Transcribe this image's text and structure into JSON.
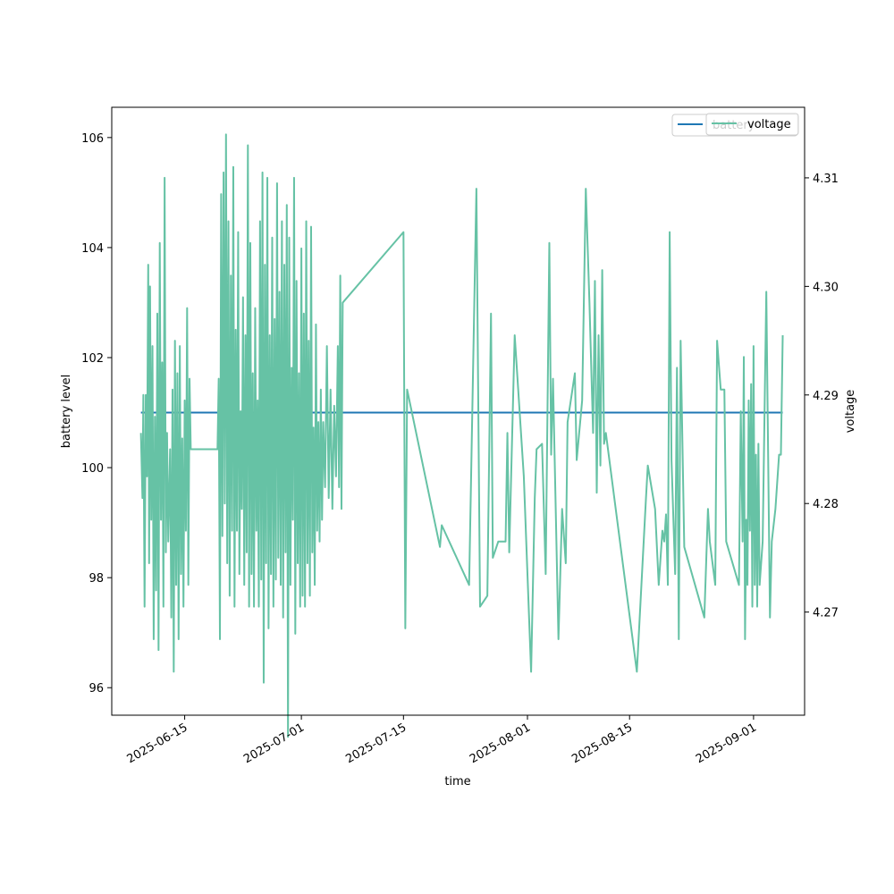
{
  "chart_data": {
    "type": "line",
    "xlabel": "time",
    "ylabel_left": "battery level",
    "ylabel_right": "voltage",
    "x_range": [
      "2025-06-05",
      "2025-09-08"
    ],
    "ylim_left": [
      95.5,
      106.55
    ],
    "ylim_right": [
      4.2605,
      4.3165
    ],
    "x_ticks": [
      "2025-06-15",
      "2025-07-01",
      "2025-07-15",
      "2025-08-01",
      "2025-08-15",
      "2025-09-01"
    ],
    "y_ticks_left": [
      96,
      98,
      100,
      102,
      104,
      106
    ],
    "y_ticks_right": [
      4.27,
      4.28,
      4.29,
      4.3,
      4.31
    ],
    "grid": false,
    "series": [
      {
        "name": "battery",
        "axis": "left",
        "color": "#1f77b4",
        "points": [
          [
            "2025-06-09",
            101
          ],
          [
            "2025-09-05",
            101
          ]
        ]
      },
      {
        "name": "voltage",
        "axis": "right",
        "color": "#66c2a5",
        "points": [
          [
            "2025-06-09 00:00",
            4.2865
          ],
          [
            "2025-06-09 05:00",
            4.2805
          ],
          [
            "2025-06-09 08:00",
            4.29
          ],
          [
            "2025-06-09 12:00",
            4.2705
          ],
          [
            "2025-06-09 16:00",
            4.29
          ],
          [
            "2025-06-09 20:00",
            4.2825
          ],
          [
            "2025-06-10 00:00",
            4.302
          ],
          [
            "2025-06-10 03:00",
            4.2745
          ],
          [
            "2025-06-10 06:00",
            4.3
          ],
          [
            "2025-06-10 10:00",
            4.2785
          ],
          [
            "2025-06-10 14:00",
            4.2945
          ],
          [
            "2025-06-10 18:00",
            4.2675
          ],
          [
            "2025-06-10 22:00",
            4.288
          ],
          [
            "2025-06-11 02:00",
            4.272
          ],
          [
            "2025-06-11 06:00",
            4.2975
          ],
          [
            "2025-06-11 10:00",
            4.2665
          ],
          [
            "2025-06-11 14:00",
            4.304
          ],
          [
            "2025-06-11 18:00",
            4.2785
          ],
          [
            "2025-06-11 22:00",
            4.293
          ],
          [
            "2025-06-12 02:00",
            4.2705
          ],
          [
            "2025-06-12 06:00",
            4.31
          ],
          [
            "2025-06-12 10:00",
            4.2755
          ],
          [
            "2025-06-12 14:00",
            4.2865
          ],
          [
            "2025-06-12 18:00",
            4.2765
          ],
          [
            "2025-06-13 00:00",
            4.285
          ],
          [
            "2025-06-13 04:00",
            4.2695
          ],
          [
            "2025-06-13 08:00",
            4.2905
          ],
          [
            "2025-06-13 12:00",
            4.2645
          ],
          [
            "2025-06-13 16:00",
            4.295
          ],
          [
            "2025-06-13 20:00",
            4.2725
          ],
          [
            "2025-06-14 00:00",
            4.292
          ],
          [
            "2025-06-14 04:00",
            4.2675
          ],
          [
            "2025-06-14 08:00",
            4.2945
          ],
          [
            "2025-06-14 12:00",
            4.2735
          ],
          [
            "2025-06-14 16:00",
            4.286
          ],
          [
            "2025-06-14 20:00",
            4.2705
          ],
          [
            "2025-06-15 00:00",
            4.2895
          ],
          [
            "2025-06-15 04:00",
            4.2775
          ],
          [
            "2025-06-15 08:00",
            4.298
          ],
          [
            "2025-06-15 12:00",
            4.2725
          ],
          [
            "2025-06-15 16:00",
            4.2915
          ],
          [
            "2025-06-15 20:00",
            4.285
          ],
          [
            "2025-06-19 12:00",
            4.285
          ],
          [
            "2025-06-19 16:00",
            4.2915
          ],
          [
            "2025-06-19 20:00",
            4.2675
          ],
          [
            "2025-06-20 00:00",
            4.3085
          ],
          [
            "2025-06-20 04:00",
            4.277
          ],
          [
            "2025-06-20 08:00",
            4.3105
          ],
          [
            "2025-06-20 12:00",
            4.28
          ],
          [
            "2025-06-20 16:00",
            4.314
          ],
          [
            "2025-06-20 20:00",
            4.2745
          ],
          [
            "2025-06-21 00:00",
            4.306
          ],
          [
            "2025-06-21 04:00",
            4.2715
          ],
          [
            "2025-06-21 08:00",
            4.301
          ],
          [
            "2025-06-21 12:00",
            4.2775
          ],
          [
            "2025-06-21 16:00",
            4.311
          ],
          [
            "2025-06-21 20:00",
            4.2705
          ],
          [
            "2025-06-22 00:00",
            4.296
          ],
          [
            "2025-06-22 04:00",
            4.2775
          ],
          [
            "2025-06-22 08:00",
            4.305
          ],
          [
            "2025-06-22 12:00",
            4.2735
          ],
          [
            "2025-06-22 16:00",
            4.2885
          ],
          [
            "2025-06-22 20:00",
            4.2795
          ],
          [
            "2025-06-23 00:00",
            4.299
          ],
          [
            "2025-06-23 04:00",
            4.2725
          ],
          [
            "2025-06-23 08:00",
            4.2955
          ],
          [
            "2025-06-23 12:00",
            4.2755
          ],
          [
            "2025-06-23 16:00",
            4.313
          ],
          [
            "2025-06-23 20:00",
            4.2705
          ],
          [
            "2025-06-24 00:00",
            4.304
          ],
          [
            "2025-06-24 04:00",
            4.2735
          ],
          [
            "2025-06-24 08:00",
            4.292
          ],
          [
            "2025-06-24 12:00",
            4.2705
          ],
          [
            "2025-06-24 16:00",
            4.298
          ],
          [
            "2025-06-24 20:00",
            4.2775
          ],
          [
            "2025-06-25 00:00",
            4.2895
          ],
          [
            "2025-06-25 04:00",
            4.2705
          ],
          [
            "2025-06-25 08:00",
            4.306
          ],
          [
            "2025-06-25 12:00",
            4.273
          ],
          [
            "2025-06-25 16:00",
            4.3105
          ],
          [
            "2025-06-25 20:00",
            4.2635
          ],
          [
            "2025-06-26 00:00",
            4.302
          ],
          [
            "2025-06-26 04:00",
            4.2745
          ],
          [
            "2025-06-26 08:00",
            4.31
          ],
          [
            "2025-06-26 12:00",
            4.2685
          ],
          [
            "2025-06-26 16:00",
            4.2955
          ],
          [
            "2025-06-26 20:00",
            4.2735
          ],
          [
            "2025-06-27 00:00",
            4.3045
          ],
          [
            "2025-06-27 04:00",
            4.2705
          ],
          [
            "2025-06-27 08:00",
            4.297
          ],
          [
            "2025-06-27 12:00",
            4.273
          ],
          [
            "2025-06-27 16:00",
            4.3095
          ],
          [
            "2025-06-27 20:00",
            4.275
          ],
          [
            "2025-06-28 00:00",
            4.2995
          ],
          [
            "2025-06-28 04:00",
            4.2725
          ],
          [
            "2025-06-28 08:00",
            4.306
          ],
          [
            "2025-06-28 12:00",
            4.2695
          ],
          [
            "2025-06-28 16:00",
            4.302
          ],
          [
            "2025-06-28 20:00",
            4.2755
          ],
          [
            "2025-06-29 00:00",
            4.3075
          ],
          [
            "2025-06-29 04:00",
            4.2585
          ],
          [
            "2025-06-29 08:00",
            4.3045
          ],
          [
            "2025-06-29 12:00",
            4.2725
          ],
          [
            "2025-06-29 16:00",
            4.2925
          ],
          [
            "2025-06-29 20:00",
            4.2785
          ],
          [
            "2025-06-30 00:00",
            4.31
          ],
          [
            "2025-06-30 04:00",
            4.268
          ],
          [
            "2025-06-30 08:00",
            4.3005
          ],
          [
            "2025-06-30 12:00",
            4.2745
          ],
          [
            "2025-06-30 16:00",
            4.292
          ],
          [
            "2025-06-30 20:00",
            4.2705
          ],
          [
            "2025-07-01 00:00",
            4.3035
          ],
          [
            "2025-07-01 04:00",
            4.2715
          ],
          [
            "2025-07-01 08:00",
            4.2975
          ],
          [
            "2025-07-01 12:00",
            4.2705
          ],
          [
            "2025-07-01 16:00",
            4.306
          ],
          [
            "2025-07-01 20:00",
            4.2745
          ],
          [
            "2025-07-02 00:00",
            4.295
          ],
          [
            "2025-07-02 04:00",
            4.2715
          ],
          [
            "2025-07-02 08:00",
            4.3055
          ],
          [
            "2025-07-02 12:00",
            4.2755
          ],
          [
            "2025-07-02 16:00",
            4.287
          ],
          [
            "2025-07-02 20:00",
            4.2725
          ],
          [
            "2025-07-03 00:00",
            4.2965
          ],
          [
            "2025-07-03 04:00",
            4.2775
          ],
          [
            "2025-07-03 08:00",
            4.2875
          ],
          [
            "2025-07-03 12:00",
            4.2765
          ],
          [
            "2025-07-03 16:00",
            4.2905
          ],
          [
            "2025-07-03 20:00",
            4.2785
          ],
          [
            "2025-07-04 00:00",
            4.2875
          ],
          [
            "2025-07-04 06:00",
            4.2815
          ],
          [
            "2025-07-04 12:00",
            4.2945
          ],
          [
            "2025-07-04 18:00",
            4.2805
          ],
          [
            "2025-07-05 00:00",
            4.2905
          ],
          [
            "2025-07-05 06:00",
            4.2795
          ],
          [
            "2025-07-05 12:00",
            4.289
          ],
          [
            "2025-07-05 18:00",
            4.2825
          ],
          [
            "2025-07-06 00:00",
            4.2945
          ],
          [
            "2025-07-06 04:00",
            4.2815
          ],
          [
            "2025-07-06 08:00",
            4.301
          ],
          [
            "2025-07-06 12:00",
            4.2795
          ],
          [
            "2025-07-06 16:00",
            4.2985
          ],
          [
            "2025-07-15 00:00",
            4.305
          ],
          [
            "2025-07-15 06:00",
            4.2685
          ],
          [
            "2025-07-15 12:00",
            4.2905
          ],
          [
            "2025-07-20 00:00",
            4.276
          ],
          [
            "2025-07-20 06:00",
            4.278
          ],
          [
            "2025-07-24 00:00",
            4.2725
          ],
          [
            "2025-07-25 00:00",
            4.309
          ],
          [
            "2025-07-25 12:00",
            4.2705
          ],
          [
            "2025-07-26 12:00",
            4.2715
          ],
          [
            "2025-07-27 00:00",
            4.2975
          ],
          [
            "2025-07-27 06:00",
            4.275
          ],
          [
            "2025-07-28 00:00",
            4.2765
          ],
          [
            "2025-07-29 00:00",
            4.2765
          ],
          [
            "2025-07-29 06:00",
            4.2865
          ],
          [
            "2025-07-29 12:00",
            4.2755
          ],
          [
            "2025-07-30 06:00",
            4.2955
          ],
          [
            "2025-07-31 12:00",
            4.2825
          ],
          [
            "2025-08-01 12:00",
            4.2645
          ],
          [
            "2025-08-02 00:00",
            4.2805
          ],
          [
            "2025-08-02 06:00",
            4.285
          ],
          [
            "2025-08-03 00:00",
            4.2855
          ],
          [
            "2025-08-03 12:00",
            4.2735
          ],
          [
            "2025-08-04 00:00",
            4.304
          ],
          [
            "2025-08-04 06:00",
            4.2845
          ],
          [
            "2025-08-04 12:00",
            4.2915
          ],
          [
            "2025-08-05 06:00",
            4.2675
          ],
          [
            "2025-08-05 18:00",
            4.2795
          ],
          [
            "2025-08-06 06:00",
            4.2745
          ],
          [
            "2025-08-06 12:00",
            4.2875
          ],
          [
            "2025-08-07 12:00",
            4.292
          ],
          [
            "2025-08-07 18:00",
            4.284
          ],
          [
            "2025-08-08 12:00",
            4.2895
          ],
          [
            "2025-08-09 00:00",
            4.309
          ],
          [
            "2025-08-09 12:00",
            4.2985
          ],
          [
            "2025-08-10 00:00",
            4.2865
          ],
          [
            "2025-08-10 06:00",
            4.3005
          ],
          [
            "2025-08-10 12:00",
            4.281
          ],
          [
            "2025-08-10 18:00",
            4.2955
          ],
          [
            "2025-08-11 00:00",
            4.2835
          ],
          [
            "2025-08-11 06:00",
            4.3015
          ],
          [
            "2025-08-11 12:00",
            4.2855
          ],
          [
            "2025-08-11 18:00",
            4.2865
          ],
          [
            "2025-08-16 00:00",
            4.2645
          ],
          [
            "2025-08-17 06:00",
            4.2805
          ],
          [
            "2025-08-17 12:00",
            4.2835
          ],
          [
            "2025-08-18 12:00",
            4.2795
          ],
          [
            "2025-08-19 00:00",
            4.2725
          ],
          [
            "2025-08-19 12:00",
            4.2775
          ],
          [
            "2025-08-19 18:00",
            4.2765
          ],
          [
            "2025-08-20 00:00",
            4.279
          ],
          [
            "2025-08-20 06:00",
            4.2725
          ],
          [
            "2025-08-20 12:00",
            4.305
          ],
          [
            "2025-08-20 18:00",
            4.284
          ],
          [
            "2025-08-21 06:00",
            4.2735
          ],
          [
            "2025-08-21 12:00",
            4.2925
          ],
          [
            "2025-08-21 18:00",
            4.2675
          ],
          [
            "2025-08-22 00:00",
            4.295
          ],
          [
            "2025-08-22 12:00",
            4.276
          ],
          [
            "2025-08-25 06:00",
            4.2695
          ],
          [
            "2025-08-25 18:00",
            4.2795
          ],
          [
            "2025-08-26 00:00",
            4.2765
          ],
          [
            "2025-08-26 18:00",
            4.2725
          ],
          [
            "2025-08-27 00:00",
            4.295
          ],
          [
            "2025-08-27 12:00",
            4.2905
          ],
          [
            "2025-08-28 00:00",
            4.2905
          ],
          [
            "2025-08-28 06:00",
            4.2765
          ],
          [
            "2025-08-30 00:00",
            4.2725
          ],
          [
            "2025-08-30 06:00",
            4.2885
          ],
          [
            "2025-08-30 12:00",
            4.2765
          ],
          [
            "2025-08-30 16:00",
            4.2935
          ],
          [
            "2025-08-30 20:00",
            4.2675
          ],
          [
            "2025-08-31 00:00",
            4.2785
          ],
          [
            "2025-08-31 04:00",
            4.2725
          ],
          [
            "2025-08-31 08:00",
            4.2895
          ],
          [
            "2025-08-31 12:00",
            4.2775
          ],
          [
            "2025-08-31 16:00",
            4.291
          ],
          [
            "2025-08-31 20:00",
            4.2705
          ],
          [
            "2025-09-01 00:00",
            4.2945
          ],
          [
            "2025-09-01 04:00",
            4.2725
          ],
          [
            "2025-09-01 08:00",
            4.2845
          ],
          [
            "2025-09-01 12:00",
            4.2705
          ],
          [
            "2025-09-01 16:00",
            4.2855
          ],
          [
            "2025-09-01 20:00",
            4.2725
          ],
          [
            "2025-09-02 06:00",
            4.2765
          ],
          [
            "2025-09-02 18:00",
            4.2995
          ],
          [
            "2025-09-03 06:00",
            4.2695
          ],
          [
            "2025-09-03 12:00",
            4.2765
          ],
          [
            "2025-09-04 00:00",
            4.2795
          ],
          [
            "2025-09-04 12:00",
            4.2845
          ],
          [
            "2025-09-04 18:00",
            4.2845
          ],
          [
            "2025-09-05 00:00",
            4.2955
          ]
        ]
      }
    ],
    "legend": {
      "position": "upper-right",
      "entries": [
        "battery",
        "voltage"
      ]
    }
  }
}
